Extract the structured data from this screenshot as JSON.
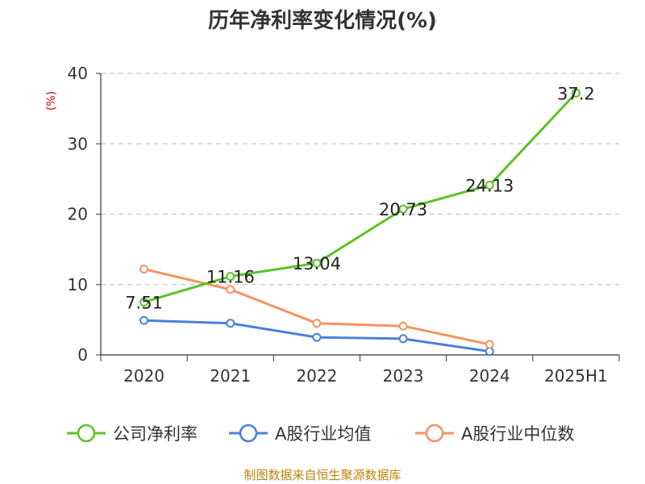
{
  "chart_data": {
    "type": "line",
    "title": "历年净利率变化情况(%)",
    "unit_label": "(%)",
    "categories": [
      "2020",
      "2021",
      "2022",
      "2023",
      "2024",
      "2025H1"
    ],
    "ylim": [
      0,
      40
    ],
    "yticks": [
      "0",
      "10",
      "20",
      "30",
      "40"
    ],
    "grid": true,
    "legend_position": "bottom",
    "series": [
      {
        "name": "公司净利率",
        "color": "#5cc227",
        "values": [
          7.51,
          11.16,
          13.04,
          20.73,
          24.13,
          37.2
        ],
        "labels": [
          "7.51",
          "11.16",
          "13.04",
          "20.73",
          "24.13",
          "37.2"
        ]
      },
      {
        "name": "A股行业均值",
        "color": "#4a7fdb",
        "values": [
          4.9,
          4.5,
          2.5,
          2.3,
          0.5,
          null
        ]
      },
      {
        "name": "A股行业中位数",
        "color": "#f5935e",
        "values": [
          12.2,
          9.3,
          4.5,
          4.1,
          1.5,
          null
        ]
      }
    ],
    "source": "制图数据来自恒生聚源数据库"
  }
}
